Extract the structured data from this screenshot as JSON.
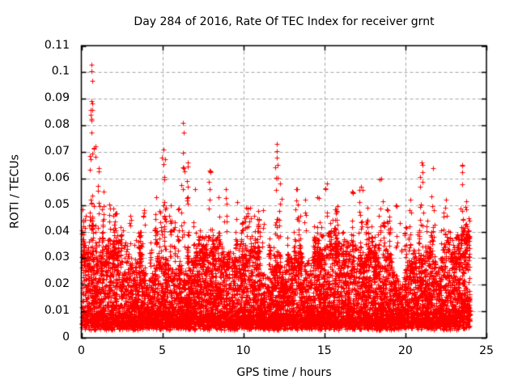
{
  "chart_data": {
    "type": "scatter",
    "title": "Day 284 of 2016, Rate Of TEC Index for receiver grnt",
    "xlabel": "GPS time / hours",
    "ylabel": "ROTI / TECUs",
    "xlim": [
      0,
      25
    ],
    "ylim": [
      0,
      0.11
    ],
    "x_ticks": [
      0,
      5,
      10,
      15,
      20,
      25
    ],
    "x_tick_labels": [
      "0",
      "5",
      "10",
      "15",
      "20",
      "25"
    ],
    "y_ticks": [
      0,
      0.01,
      0.02,
      0.03,
      0.04,
      0.05,
      0.06,
      0.07,
      0.08,
      0.09,
      0.1,
      0.11
    ],
    "y_tick_labels": [
      "0",
      "0.01",
      "0.02",
      "0.03",
      "0.04",
      "0.05",
      "0.06",
      "0.07",
      "0.08",
      "0.09",
      "0.1",
      "0.11"
    ],
    "grid": true,
    "grid_dash": [
      4,
      3
    ],
    "legend": "none",
    "marker": "plus",
    "marker_half_px": 3,
    "colors": {
      "marker": "#ff0000",
      "grid": "#a6a6a6",
      "axis": "#000000",
      "text": "#000000",
      "background": "#ffffff"
    },
    "series": [
      {
        "name": "ROTI",
        "x_coverage_hours": [
          0,
          24
        ],
        "summary": "Very dense cloud of red plus markers between 0.003 and ~0.045 TECUs across all 24 hours, with intermittent narrow spikes; maximum ~0.103 near 0.6 h",
        "distribution": {
          "seed": 284,
          "band": {
            "n_points": 9000,
            "x_min": 0.02,
            "x_max": 23.98,
            "y_min": 0.003,
            "y_jitter": 0.004,
            "y_core_max": 0.03,
            "shape_pow": 2.1
          },
          "mid_columns": {
            "count": 120,
            "y_base": 0.026,
            "y_top_min": 0.03,
            "y_top_extra": 0.022,
            "pts_min": 3,
            "pts_extra": 10,
            "x_jitter": 0.12
          },
          "spikes": [
            {
              "x": 0.6,
              "peak": 0.103,
              "n": 28
            },
            {
              "x": 0.85,
              "peak": 0.072,
              "n": 8
            },
            {
              "x": 1.05,
              "peak": 0.064,
              "n": 10
            },
            {
              "x": 1.35,
              "peak": 0.055,
              "n": 6
            },
            {
              "x": 2.1,
              "peak": 0.047,
              "n": 6
            },
            {
              "x": 3.0,
              "peak": 0.046,
              "n": 5
            },
            {
              "x": 3.85,
              "peak": 0.048,
              "n": 6
            },
            {
              "x": 4.6,
              "peak": 0.053,
              "n": 7
            },
            {
              "x": 5.05,
              "peak": 0.071,
              "n": 13
            },
            {
              "x": 5.5,
              "peak": 0.05,
              "n": 6
            },
            {
              "x": 6.25,
              "peak": 0.081,
              "n": 15
            },
            {
              "x": 6.55,
              "peak": 0.066,
              "n": 9
            },
            {
              "x": 7.0,
              "peak": 0.056,
              "n": 6
            },
            {
              "x": 7.9,
              "peak": 0.063,
              "n": 9
            },
            {
              "x": 8.45,
              "peak": 0.053,
              "n": 6
            },
            {
              "x": 8.9,
              "peak": 0.056,
              "n": 7
            },
            {
              "x": 9.6,
              "peak": 0.051,
              "n": 6
            },
            {
              "x": 10.4,
              "peak": 0.049,
              "n": 6
            },
            {
              "x": 11.2,
              "peak": 0.048,
              "n": 5
            },
            {
              "x": 12.05,
              "peak": 0.073,
              "n": 15
            },
            {
              "x": 12.25,
              "peak": 0.058,
              "n": 8
            },
            {
              "x": 13.3,
              "peak": 0.056,
              "n": 6
            },
            {
              "x": 13.8,
              "peak": 0.052,
              "n": 6
            },
            {
              "x": 14.55,
              "peak": 0.053,
              "n": 6
            },
            {
              "x": 15.15,
              "peak": 0.058,
              "n": 8
            },
            {
              "x": 16.7,
              "peak": 0.055,
              "n": 7
            },
            {
              "x": 17.25,
              "peak": 0.057,
              "n": 8
            },
            {
              "x": 18.5,
              "peak": 0.06,
              "n": 8
            },
            {
              "x": 19.4,
              "peak": 0.05,
              "n": 6
            },
            {
              "x": 20.3,
              "peak": 0.052,
              "n": 6
            },
            {
              "x": 21.0,
              "peak": 0.066,
              "n": 13
            },
            {
              "x": 21.7,
              "peak": 0.064,
              "n": 9
            },
            {
              "x": 22.5,
              "peak": 0.052,
              "n": 6
            },
            {
              "x": 23.5,
              "peak": 0.065,
              "n": 12
            },
            {
              "x": 23.9,
              "peak": 0.045,
              "n": 10
            }
          ]
        }
      }
    ]
  }
}
